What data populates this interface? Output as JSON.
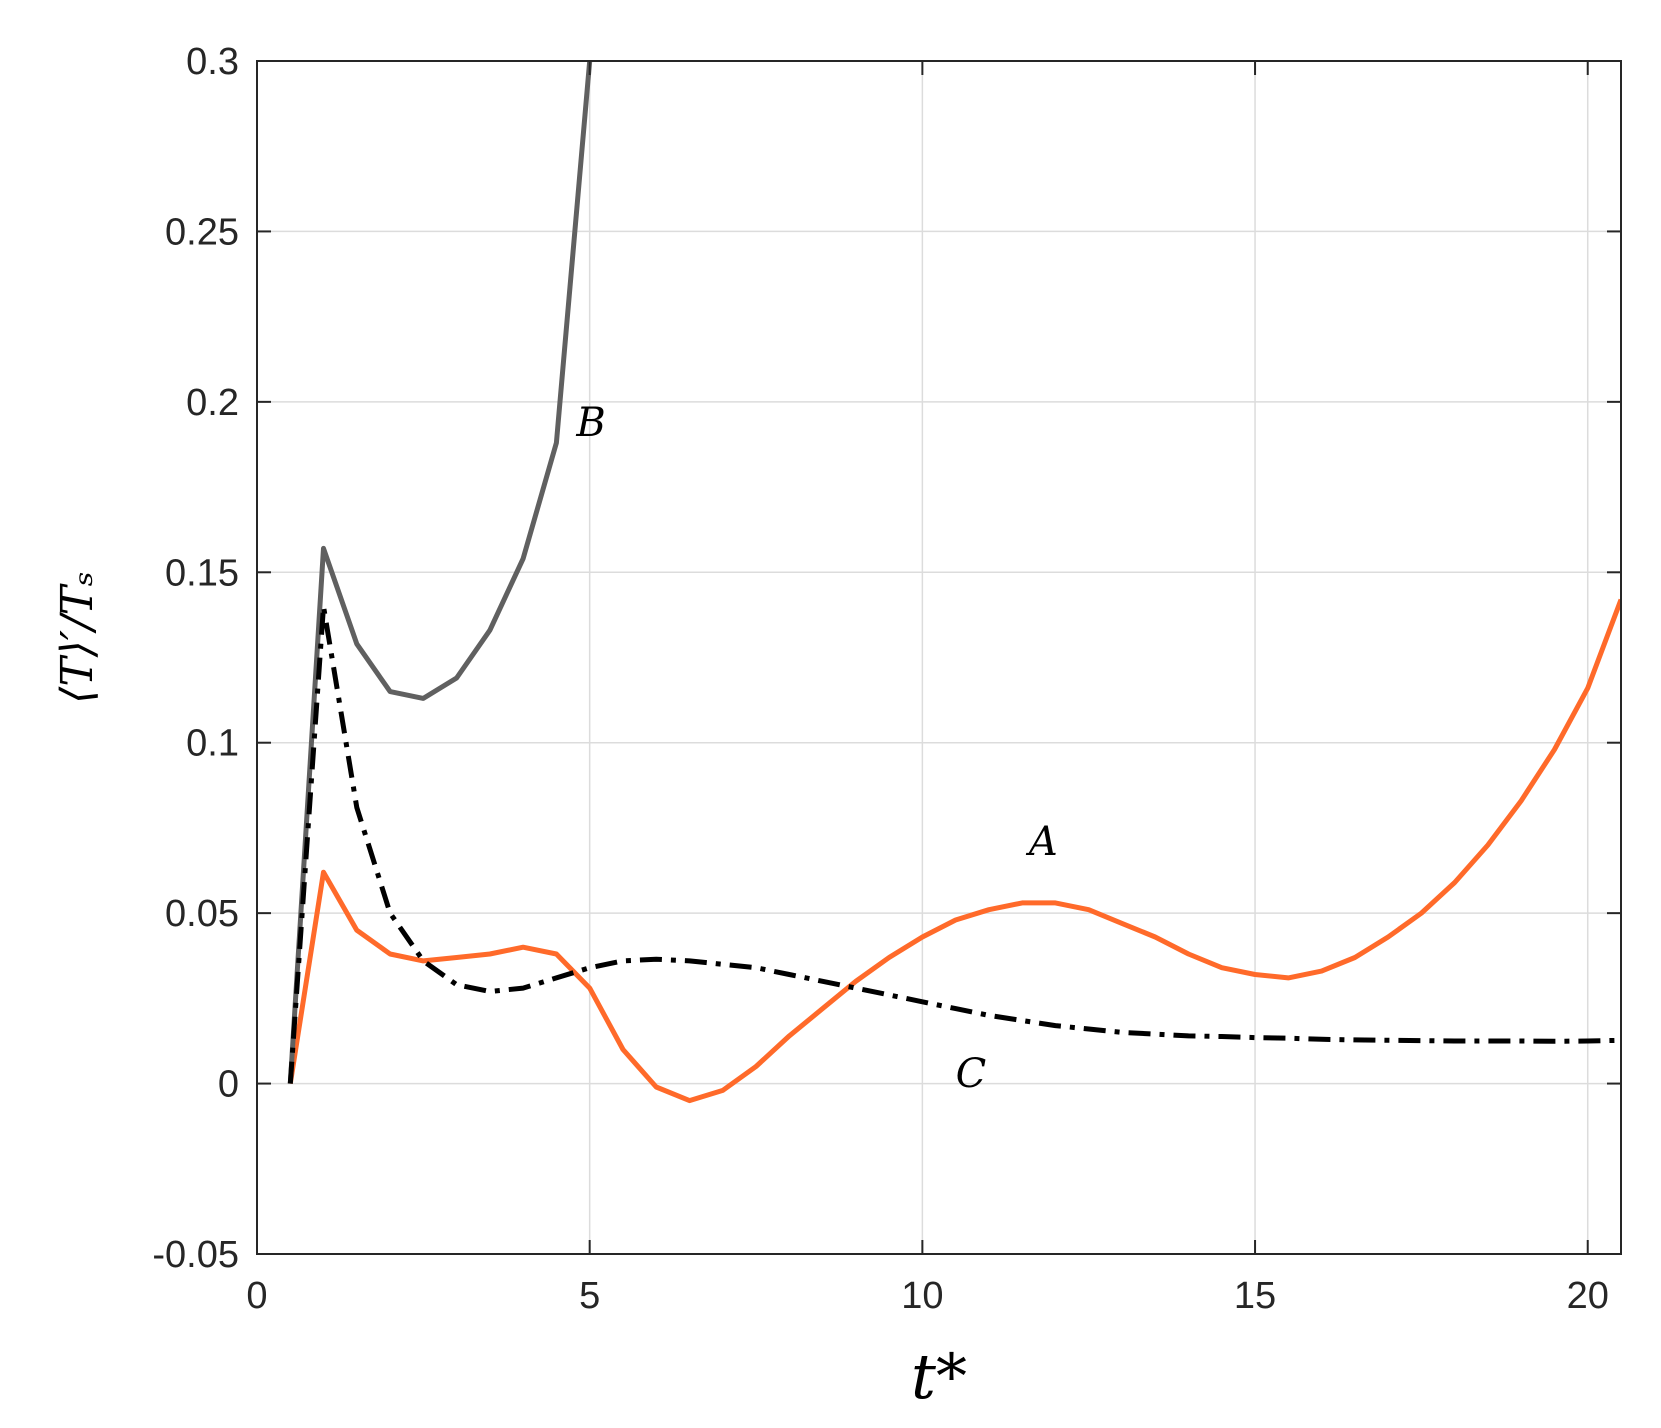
{
  "chart_data": {
    "type": "line",
    "title": "",
    "xlabel": "t*",
    "ylabel": "⟨T⟩′/Tₛ",
    "xlim": [
      0,
      20.5
    ],
    "ylim": [
      -0.05,
      0.3
    ],
    "xticks": [
      0,
      5,
      10,
      15,
      20
    ],
    "yticks": [
      -0.05,
      0,
      0.05,
      0.1,
      0.15,
      0.2,
      0.25,
      0.3
    ],
    "xtick_labels": [
      "0",
      "5",
      "10",
      "15",
      "20"
    ],
    "ytick_labels": [
      "-0.05",
      "0",
      "0.05",
      "0.1",
      "0.15",
      "0.2",
      "0.25",
      "0.3"
    ],
    "grid": true,
    "legend": "none",
    "series": [
      {
        "name": "A",
        "color": "#ff6a2a",
        "style": "solid",
        "label_at": [
          11.6,
          0.067
        ],
        "x": [
          0.5,
          1.0,
          1.5,
          2.0,
          2.5,
          3.0,
          3.5,
          4.0,
          4.5,
          5.0,
          5.5,
          6.0,
          6.5,
          7.0,
          7.5,
          8.0,
          8.5,
          9.0,
          9.5,
          10.0,
          10.5,
          11.0,
          11.5,
          12.0,
          12.5,
          13.0,
          13.5,
          14.0,
          14.5,
          15.0,
          15.5,
          16.0,
          16.5,
          17.0,
          17.5,
          18.0,
          18.5,
          19.0,
          19.5,
          20.0,
          20.5
        ],
        "y": [
          0.0,
          0.062,
          0.045,
          0.038,
          0.036,
          0.037,
          0.038,
          0.04,
          0.038,
          0.028,
          0.01,
          -0.001,
          -0.005,
          -0.002,
          0.005,
          0.014,
          0.022,
          0.03,
          0.037,
          0.043,
          0.048,
          0.051,
          0.053,
          0.053,
          0.051,
          0.047,
          0.043,
          0.038,
          0.034,
          0.032,
          0.031,
          0.033,
          0.037,
          0.043,
          0.05,
          0.059,
          0.07,
          0.083,
          0.098,
          0.116,
          0.142
        ]
      },
      {
        "name": "B",
        "color": "#606060",
        "style": "solid",
        "label_at": [
          4.8,
          0.19
        ],
        "x": [
          0.5,
          1.0,
          1.5,
          2.0,
          2.5,
          3.0,
          3.5,
          4.0,
          4.5,
          5.0
        ],
        "y": [
          0.0,
          0.157,
          0.129,
          0.115,
          0.113,
          0.119,
          0.133,
          0.154,
          0.188,
          0.3
        ]
      },
      {
        "name": "C",
        "color": "#000000",
        "style": "dashdot",
        "label_at": [
          10.5,
          -0.001
        ],
        "x": [
          0.5,
          1.0,
          1.5,
          2.0,
          2.5,
          3.0,
          3.5,
          4.0,
          4.5,
          5.0,
          5.5,
          6.0,
          6.5,
          7.0,
          7.5,
          8.0,
          8.5,
          9.0,
          9.5,
          10.0,
          10.5,
          11.0,
          11.5,
          12.0,
          12.5,
          13.0,
          13.5,
          14.0,
          14.5,
          15.0,
          15.5,
          16.0,
          16.5,
          17.0,
          17.5,
          18.0,
          18.5,
          19.0,
          19.5,
          20.0,
          20.5
        ],
        "y": [
          0.0,
          0.14,
          0.081,
          0.05,
          0.036,
          0.029,
          0.027,
          0.028,
          0.031,
          0.034,
          0.036,
          0.0365,
          0.036,
          0.035,
          0.034,
          0.032,
          0.03,
          0.028,
          0.026,
          0.024,
          0.022,
          0.02,
          0.0185,
          0.017,
          0.016,
          0.015,
          0.0145,
          0.014,
          0.0138,
          0.0135,
          0.0133,
          0.013,
          0.0128,
          0.0127,
          0.0126,
          0.0125,
          0.0125,
          0.0125,
          0.0124,
          0.0125,
          0.0127
        ]
      }
    ]
  }
}
